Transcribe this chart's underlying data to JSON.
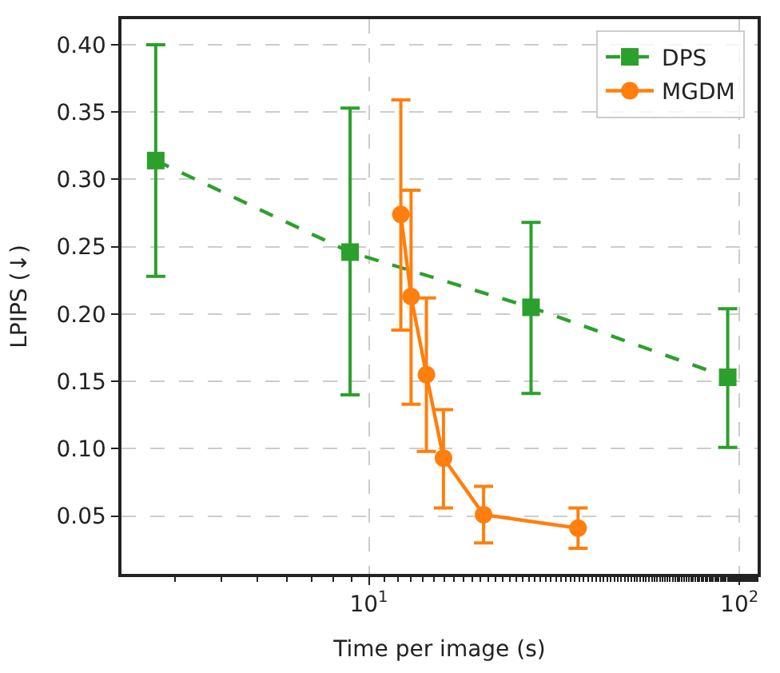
{
  "chart_data": {
    "type": "line",
    "xlabel": "Time per image (s)",
    "ylabel": "LPIPS (↓)",
    "log": "x",
    "xlim": [
      2.15,
      112
    ],
    "ylim": [
      0.007,
      0.419
    ],
    "xticks": [
      {
        "value": 10,
        "label": "10$^{1}$"
      },
      {
        "value": 100,
        "label": "10$^{2}$"
      }
    ],
    "yticks": [
      {
        "value": 0.05,
        "label": "0.05"
      },
      {
        "value": 0.1,
        "label": "0.10"
      },
      {
        "value": 0.15,
        "label": "0.15"
      },
      {
        "value": 0.2,
        "label": "0.20"
      },
      {
        "value": 0.25,
        "label": "0.25"
      },
      {
        "value": 0.3,
        "label": "0.30"
      },
      {
        "value": 0.35,
        "label": "0.35"
      },
      {
        "value": 0.4,
        "label": "0.40"
      }
    ],
    "grid": true,
    "legend": "top right",
    "series": [
      {
        "name": "DPS",
        "color": "#2ca02c",
        "marker": "square",
        "line_style": "dashed",
        "x": [
          2.66,
          8.9,
          27.4,
          93
        ],
        "values": [
          0.314,
          0.246,
          0.205,
          0.153
        ],
        "errors": [
          [
            0.228,
            0.4
          ],
          [
            0.14,
            0.353
          ],
          [
            0.141,
            0.268
          ],
          [
            0.101,
            0.204
          ]
        ]
      },
      {
        "name": "MGDM",
        "color": "#ff7f0e",
        "marker": "circle",
        "line_style": "solid",
        "x": [
          12.2,
          13.0,
          14.3,
          15.9,
          20.4,
          36.7
        ],
        "values": [
          0.274,
          0.213,
          0.155,
          0.093,
          0.051,
          0.041
        ],
        "errors": [
          [
            0.188,
            0.359
          ],
          [
            0.133,
            0.292
          ],
          [
            0.098,
            0.212
          ],
          [
            0.056,
            0.129
          ],
          [
            0.03,
            0.072
          ],
          [
            0.026,
            0.056
          ]
        ]
      }
    ]
  }
}
